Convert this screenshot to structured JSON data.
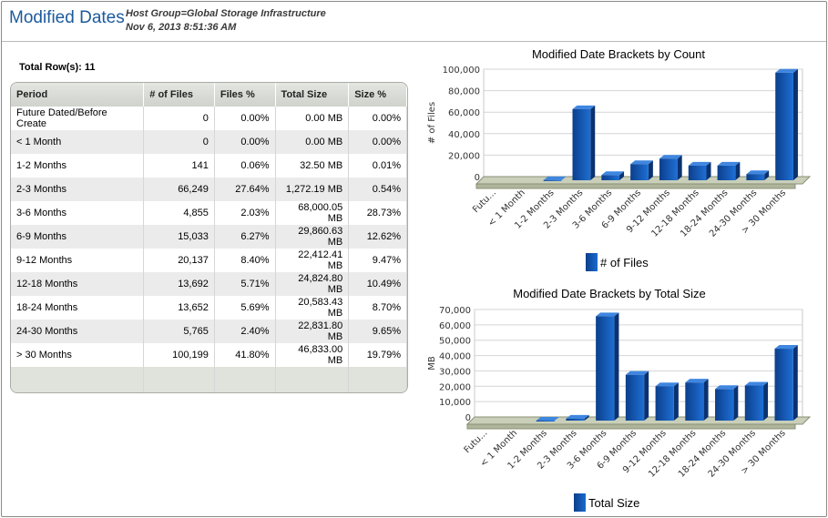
{
  "header": {
    "title": "Modified Dates",
    "host_group": "Host Group=Global Storage Infrastructure",
    "timestamp": "Nov 6, 2013 8:51:36 AM"
  },
  "total_rows": "Total Row(s): 11",
  "table": {
    "columns": [
      "Period",
      "# of Files",
      "Files %",
      "Total Size",
      "Size %"
    ],
    "rows": [
      [
        "Future Dated/Before Create",
        "0",
        "0.00%",
        "0.00 MB",
        "0.00%"
      ],
      [
        "< 1 Month",
        "0",
        "0.00%",
        "0.00 MB",
        "0.00%"
      ],
      [
        "1-2 Months",
        "141",
        "0.06%",
        "32.50 MB",
        "0.01%"
      ],
      [
        "2-3 Months",
        "66,249",
        "27.64%",
        "1,272.19 MB",
        "0.54%"
      ],
      [
        "3-6 Months",
        "4,855",
        "2.03%",
        "68,000.05 MB",
        "28.73%"
      ],
      [
        "6-9 Months",
        "15,033",
        "6.27%",
        "29,860.63 MB",
        "12.62%"
      ],
      [
        "9-12 Months",
        "20,137",
        "8.40%",
        "22,412.41 MB",
        "9.47%"
      ],
      [
        "12-18 Months",
        "13,692",
        "5.71%",
        "24,824.80 MB",
        "10.49%"
      ],
      [
        "18-24 Months",
        "13,652",
        "5.69%",
        "20,583.43 MB",
        "8.70%"
      ],
      [
        "24-30 Months",
        "5,765",
        "2.40%",
        "22,831.80 MB",
        "9.65%"
      ],
      [
        "> 30 Months",
        "100,199",
        "41.80%",
        "46,833.00 MB",
        "19.79%"
      ]
    ]
  },
  "chart_data": [
    {
      "type": "bar",
      "title": "Modified Date Brackets by Count",
      "ylabel": "# of Files",
      "xlabel": "",
      "categories": [
        "Futu...",
        "< 1 Month",
        "1-2 Months",
        "2-3 Months",
        "3-6 Months",
        "6-9 Months",
        "9-12 Months",
        "12-18 Months",
        "18-24 Months",
        "24-30 Months",
        "> 30 Months"
      ],
      "series": [
        {
          "name": "# of Files",
          "values": [
            0,
            0,
            141,
            66249,
            4855,
            15033,
            20137,
            13692,
            13652,
            5765,
            100199
          ]
        }
      ],
      "ylim": [
        0,
        100000
      ],
      "yticks": [
        "0",
        "20,000",
        "40,000",
        "60,000",
        "80,000",
        "100,000"
      ],
      "legend": "bottom",
      "grid": true,
      "color": "#1560bd"
    },
    {
      "type": "bar",
      "title": "Modified Date Brackets by Total Size",
      "ylabel": "MB",
      "xlabel": "",
      "categories": [
        "Futu...",
        "< 1 Month",
        "1-2 Months",
        "2-3 Months",
        "3-6 Months",
        "6-9 Months",
        "9-12 Months",
        "12-18 Months",
        "18-24 Months",
        "24-30 Months",
        "> 30 Months"
      ],
      "series": [
        {
          "name": "Total Size",
          "values": [
            0,
            0,
            32.5,
            1272.19,
            68000.05,
            29860.63,
            22412.41,
            24824.8,
            20583.43,
            22831.8,
            46833
          ]
        }
      ],
      "ylim": [
        0,
        70000
      ],
      "yticks": [
        "0",
        "10,000",
        "20,000",
        "30,000",
        "40,000",
        "50,000",
        "60,000",
        "70,000"
      ],
      "legend": "bottom",
      "grid": true,
      "color": "#1560bd"
    }
  ]
}
